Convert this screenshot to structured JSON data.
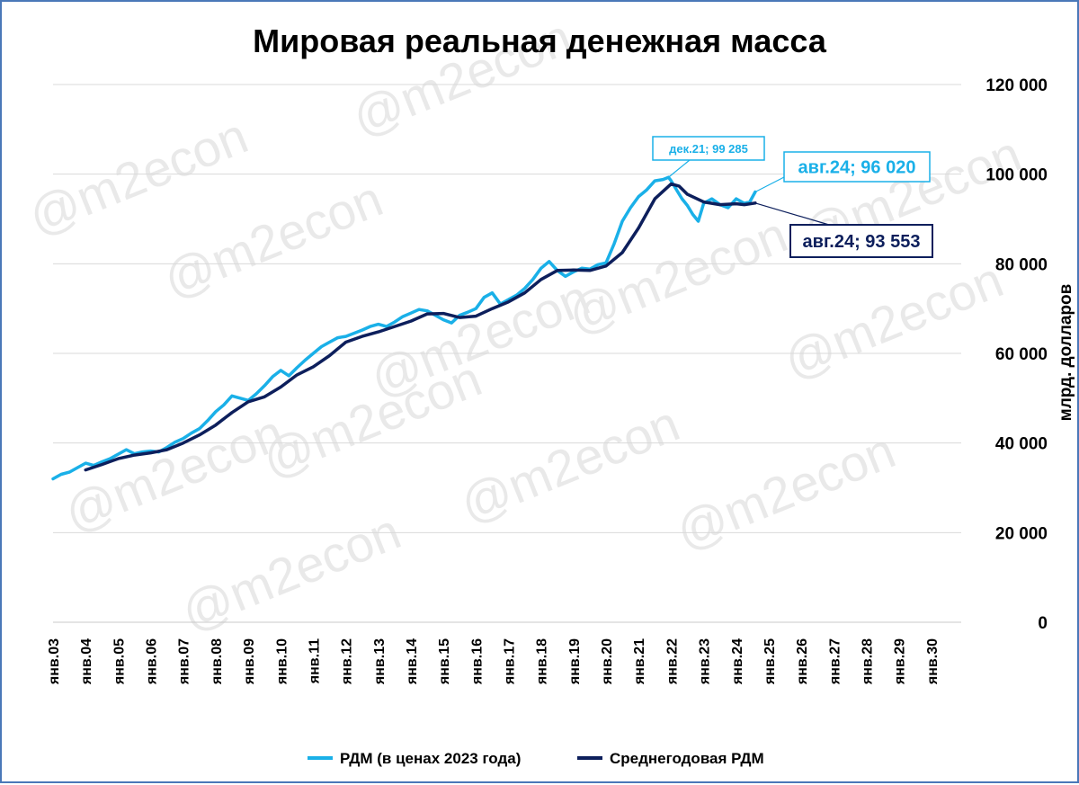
{
  "watermark": "@m2econ",
  "chart_data": {
    "type": "line",
    "title": "Мировая реальная денежная масса",
    "ylabel": "млрд. долларов",
    "ylim": [
      0,
      120000
    ],
    "yticks": [
      0,
      20000,
      40000,
      60000,
      80000,
      100000,
      120000
    ],
    "ytick_labels": [
      "0",
      "20 000",
      "40 000",
      "60 000",
      "80 000",
      "100 000",
      "120 000"
    ],
    "x_tick_labels": [
      "янв.03",
      "янв.04",
      "янв.05",
      "янв.06",
      "янв.07",
      "янв.08",
      "янв.09",
      "янв.10",
      "янв.11",
      "янв.12",
      "янв.13",
      "янв.14",
      "янв.15",
      "янв.16",
      "янв.17",
      "янв.18",
      "янв.19",
      "янв.20",
      "янв.21",
      "янв.22",
      "янв.23",
      "янв.24",
      "янв.25",
      "янв.26",
      "янв.27",
      "янв.28",
      "янв.29",
      "янв.30"
    ],
    "x_range": [
      "2003-01",
      "2030-12"
    ],
    "grid": true,
    "legend_position": "bottom",
    "series": [
      {
        "name": "РДМ (в ценах 2023 года)",
        "color": "#1ab0e8",
        "points": [
          [
            "2003-01",
            32000
          ],
          [
            "2003-04",
            33000
          ],
          [
            "2003-07",
            33500
          ],
          [
            "2003-10",
            34500
          ],
          [
            "2004-01",
            35500
          ],
          [
            "2004-04",
            35000
          ],
          [
            "2004-07",
            35800
          ],
          [
            "2004-10",
            36500
          ],
          [
            "2005-01",
            37500
          ],
          [
            "2005-04",
            38500
          ],
          [
            "2005-07",
            37600
          ],
          [
            "2005-10",
            38000
          ],
          [
            "2006-01",
            38200
          ],
          [
            "2006-04",
            38000
          ],
          [
            "2006-07",
            39000
          ],
          [
            "2006-10",
            40200
          ],
          [
            "2007-01",
            41000
          ],
          [
            "2007-04",
            42200
          ],
          [
            "2007-07",
            43200
          ],
          [
            "2007-10",
            45000
          ],
          [
            "2008-01",
            47000
          ],
          [
            "2008-04",
            48500
          ],
          [
            "2008-07",
            50500
          ],
          [
            "2008-10",
            50000
          ],
          [
            "2009-01",
            49500
          ],
          [
            "2009-04",
            51000
          ],
          [
            "2009-07",
            52800
          ],
          [
            "2009-10",
            54800
          ],
          [
            "2010-01",
            56200
          ],
          [
            "2010-04",
            55000
          ],
          [
            "2010-07",
            56800
          ],
          [
            "2010-10",
            58500
          ],
          [
            "2011-01",
            60000
          ],
          [
            "2011-04",
            61500
          ],
          [
            "2011-07",
            62500
          ],
          [
            "2011-10",
            63500
          ],
          [
            "2012-01",
            63800
          ],
          [
            "2012-04",
            64500
          ],
          [
            "2012-07",
            65200
          ],
          [
            "2012-10",
            66000
          ],
          [
            "2013-01",
            66500
          ],
          [
            "2013-04",
            66000
          ],
          [
            "2013-07",
            67000
          ],
          [
            "2013-10",
            68200
          ],
          [
            "2014-01",
            69000
          ],
          [
            "2014-04",
            69800
          ],
          [
            "2014-07",
            69500
          ],
          [
            "2014-10",
            68500
          ],
          [
            "2015-01",
            67500
          ],
          [
            "2015-04",
            66800
          ],
          [
            "2015-07",
            68500
          ],
          [
            "2015-10",
            69200
          ],
          [
            "2016-01",
            70000
          ],
          [
            "2016-04",
            72500
          ],
          [
            "2016-07",
            73500
          ],
          [
            "2016-10",
            71000
          ],
          [
            "2017-01",
            72000
          ],
          [
            "2017-04",
            73000
          ],
          [
            "2017-07",
            74500
          ],
          [
            "2017-10",
            76500
          ],
          [
            "2018-01",
            79000
          ],
          [
            "2018-04",
            80500
          ],
          [
            "2018-07",
            78500
          ],
          [
            "2018-10",
            77200
          ],
          [
            "2019-01",
            78200
          ],
          [
            "2019-04",
            79000
          ],
          [
            "2019-07",
            78800
          ],
          [
            "2019-10",
            79800
          ],
          [
            "2020-01",
            80200
          ],
          [
            "2020-04",
            84500
          ],
          [
            "2020-07",
            89500
          ],
          [
            "2020-10",
            92500
          ],
          [
            "2021-01",
            95000
          ],
          [
            "2021-04",
            96500
          ],
          [
            "2021-07",
            98500
          ],
          [
            "2021-10",
            98800
          ],
          [
            "2021-12",
            99285
          ],
          [
            "2022-01",
            98500
          ],
          [
            "2022-03",
            96500
          ],
          [
            "2022-05",
            94500
          ],
          [
            "2022-07",
            93000
          ],
          [
            "2022-09",
            91000
          ],
          [
            "2022-11",
            89500
          ],
          [
            "2023-01",
            93500
          ],
          [
            "2023-04",
            94500
          ],
          [
            "2023-07",
            93200
          ],
          [
            "2023-10",
            92500
          ],
          [
            "2024-01",
            94500
          ],
          [
            "2024-04",
            93500
          ],
          [
            "2024-06",
            93800
          ],
          [
            "2024-08",
            96020
          ]
        ]
      },
      {
        "name": "Среднегодовая РДМ",
        "color": "#0d1f5c",
        "points": [
          [
            "2004-01",
            34000
          ],
          [
            "2004-07",
            35200
          ],
          [
            "2005-01",
            36500
          ],
          [
            "2005-07",
            37300
          ],
          [
            "2006-01",
            37800
          ],
          [
            "2006-07",
            38500
          ],
          [
            "2007-01",
            40000
          ],
          [
            "2007-07",
            41800
          ],
          [
            "2008-01",
            44000
          ],
          [
            "2008-07",
            46800
          ],
          [
            "2009-01",
            49200
          ],
          [
            "2009-07",
            50300
          ],
          [
            "2010-01",
            52500
          ],
          [
            "2010-07",
            55200
          ],
          [
            "2011-01",
            57000
          ],
          [
            "2011-07",
            59500
          ],
          [
            "2012-01",
            62500
          ],
          [
            "2012-07",
            63800
          ],
          [
            "2013-01",
            64800
          ],
          [
            "2013-07",
            66000
          ],
          [
            "2014-01",
            67200
          ],
          [
            "2014-07",
            68800
          ],
          [
            "2015-01",
            68900
          ],
          [
            "2015-07",
            68000
          ],
          [
            "2016-01",
            68300
          ],
          [
            "2016-07",
            70000
          ],
          [
            "2017-01",
            71500
          ],
          [
            "2017-07",
            73500
          ],
          [
            "2018-01",
            76500
          ],
          [
            "2018-07",
            78500
          ],
          [
            "2019-01",
            78600
          ],
          [
            "2019-07",
            78500
          ],
          [
            "2020-01",
            79500
          ],
          [
            "2020-07",
            82500
          ],
          [
            "2021-01",
            88000
          ],
          [
            "2021-07",
            94500
          ],
          [
            "2022-01",
            97800
          ],
          [
            "2022-04",
            97300
          ],
          [
            "2022-07",
            95500
          ],
          [
            "2023-01",
            93800
          ],
          [
            "2023-07",
            93200
          ],
          [
            "2024-01",
            93400
          ],
          [
            "2024-04",
            93200
          ],
          [
            "2024-08",
            93553
          ]
        ]
      }
    ],
    "annotations": [
      {
        "text": "дек.21; 99 285",
        "x": "2021-12",
        "y": 99285,
        "series": 0,
        "style": "small"
      },
      {
        "text": "авг.24;  96 020",
        "x": "2024-08",
        "y": 96020,
        "series": 0,
        "style": "big"
      },
      {
        "text": "авг.24; 93 553",
        "x": "2024-08",
        "y": 93553,
        "series": 1,
        "style": "big"
      }
    ]
  }
}
